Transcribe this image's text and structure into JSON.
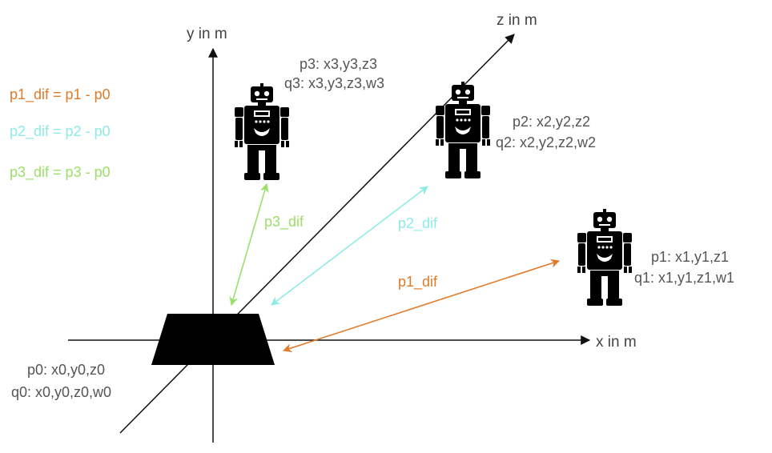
{
  "axes": {
    "x_label": "x in m",
    "y_label": "y in m",
    "z_label": "z in m"
  },
  "equations": [
    {
      "text": "p1_dif = p1 - p0",
      "color": "#E07B2A"
    },
    {
      "text": "p2_dif = p2 - p0",
      "color": "#8EEBE6"
    },
    {
      "text": "p3_dif = p3 - p0",
      "color": "#9BE06B"
    }
  ],
  "base": {
    "p_label": "p0: x0,y0,z0",
    "q_label": "q0: x0,y0,z0,w0"
  },
  "robots": {
    "r1": {
      "p_label": "p1: x1,y1,z1",
      "q_label": "q1: x1,y1,z1,w1",
      "icon": "robot-icon"
    },
    "r2": {
      "p_label": "p2: x2,y2,z2",
      "q_label": "q2: x2,y2,z2,w2",
      "icon": "robot-icon"
    },
    "r3": {
      "p_label": "p3: x3,y3,z3",
      "q_label": "q3: x3,y3,z3,w3",
      "icon": "robot-icon"
    }
  },
  "vectors": {
    "p1_dif": {
      "label": "p1_dif",
      "color": "#E07B2A"
    },
    "p2_dif": {
      "label": "p2_dif",
      "color": "#8EEBE6"
    },
    "p3_dif": {
      "label": "p3_dif",
      "color": "#9BE06B"
    }
  },
  "colors": {
    "axis": "#111111",
    "text": "#555555",
    "robot": "#000000"
  }
}
